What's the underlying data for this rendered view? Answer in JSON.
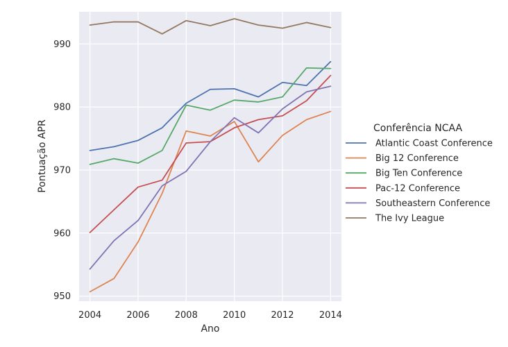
{
  "chart_data": {
    "type": "line",
    "xlabel": "Ano",
    "ylabel": "Pontuação APR",
    "x": [
      2004,
      2005,
      2006,
      2007,
      2008,
      2009,
      2010,
      2011,
      2012,
      2013,
      2014
    ],
    "xticks": [
      2004,
      2006,
      2008,
      2010,
      2012,
      2014
    ],
    "yticks": [
      950,
      960,
      970,
      980,
      990
    ],
    "xlim": [
      2003.55,
      2014.45
    ],
    "ylim": [
      949.2,
      995.1
    ],
    "grid": true,
    "background": "#eaeaf2",
    "legend": {
      "title": "Conferência NCAA",
      "position": "right"
    },
    "series": [
      {
        "name": "Atlantic Coast Conference",
        "color": "#4c72b0",
        "values": [
          973.1,
          973.7,
          974.7,
          976.7,
          980.6,
          982.8,
          982.9,
          981.6,
          983.9,
          983.4,
          987.2
        ]
      },
      {
        "name": "Big 12 Conference",
        "color": "#dd8452",
        "values": [
          950.7,
          952.8,
          958.6,
          966.3,
          976.2,
          975.4,
          977.7,
          971.3,
          975.5,
          978.0,
          979.3
        ]
      },
      {
        "name": "Big Ten Conference",
        "color": "#55a868",
        "values": [
          970.9,
          971.8,
          971.1,
          973.1,
          980.3,
          979.5,
          981.1,
          980.8,
          981.6,
          986.2,
          986.1
        ]
      },
      {
        "name": "Pac-12 Conference",
        "color": "#c44e52",
        "values": [
          960.1,
          963.7,
          967.3,
          968.4,
          974.3,
          974.5,
          976.7,
          978.0,
          978.6,
          981.0,
          985.0
        ]
      },
      {
        "name": "Southeastern Conference",
        "color": "#8172b3",
        "values": [
          954.3,
          958.8,
          962.0,
          967.5,
          969.8,
          974.5,
          978.3,
          975.9,
          979.7,
          982.4,
          983.3
        ]
      },
      {
        "name": "The Ivy League",
        "color": "#937860",
        "values": [
          993.0,
          993.5,
          993.5,
          991.6,
          993.7,
          992.9,
          994.0,
          993.0,
          992.5,
          993.4,
          992.6
        ]
      }
    ]
  }
}
